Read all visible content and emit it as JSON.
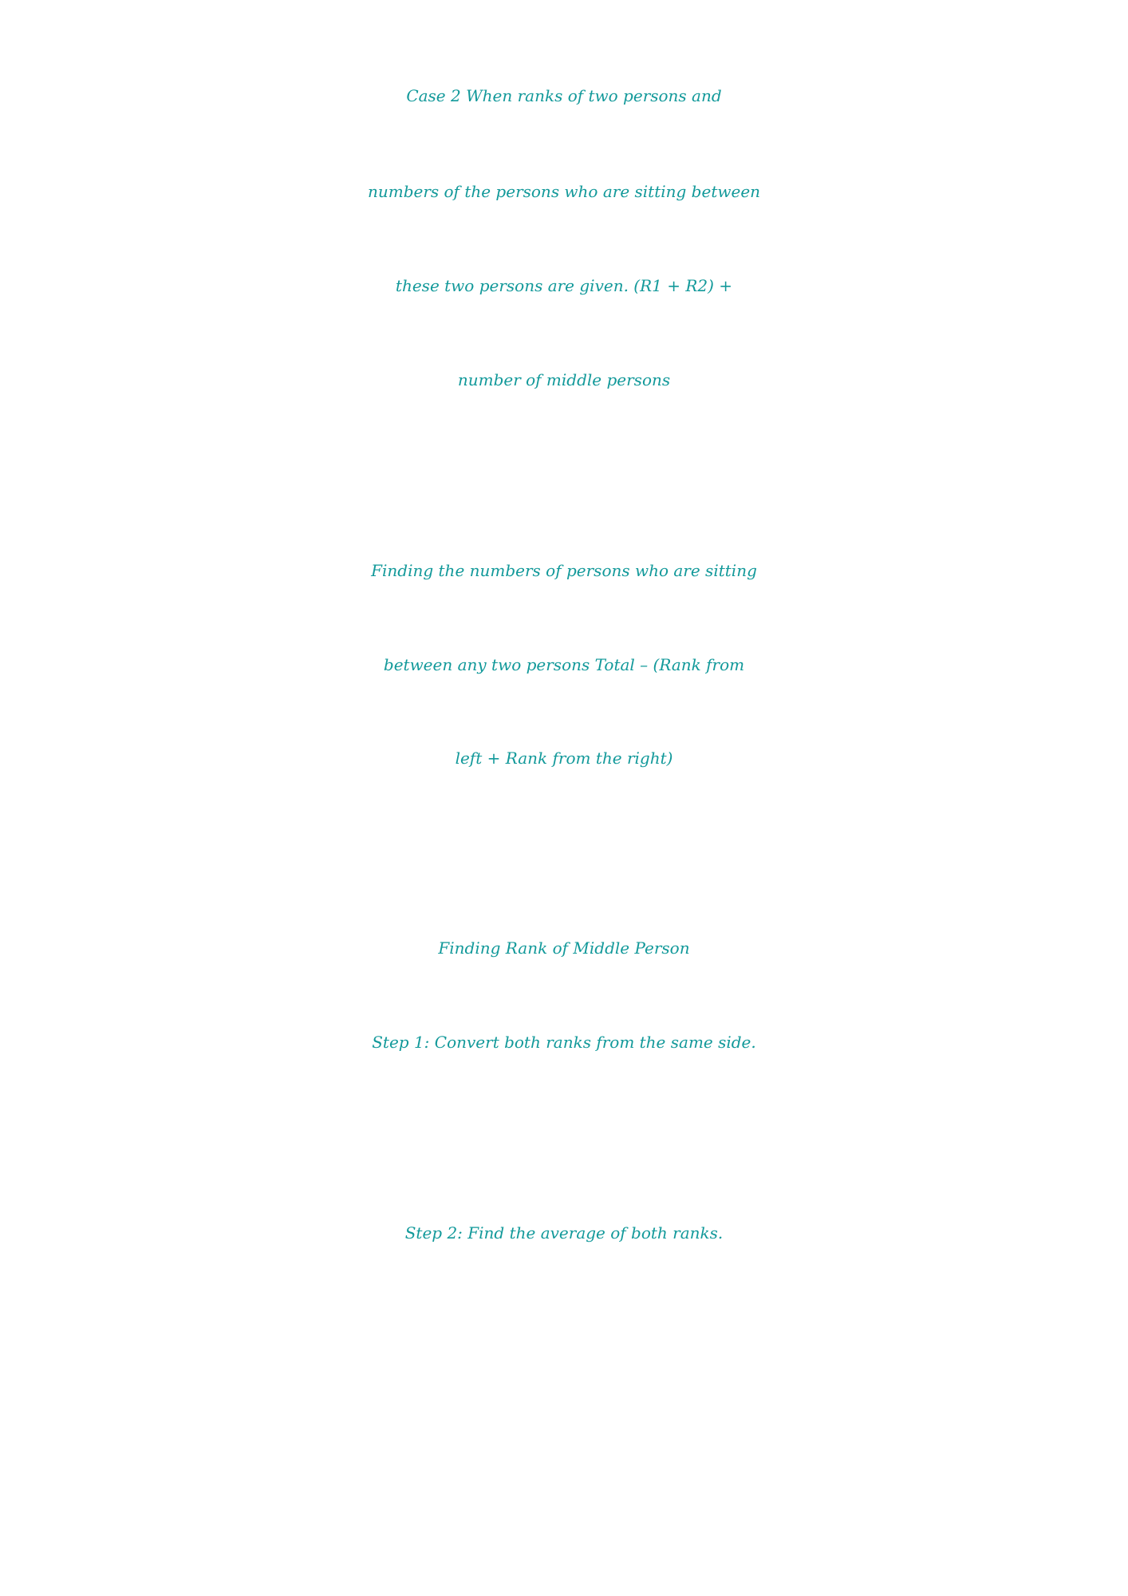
{
  "paragraphs": [
    {
      "lines": [
        "Case 2 When ranks of two persons and",
        "numbers of the persons who are sitting between",
        "these two persons are given. (R1 + R2) +",
        "number of middle persons"
      ]
    },
    {
      "lines": [
        "Finding the numbers of persons who are sitting",
        "between any two persons Total – (Rank from",
        "left + Rank from the right)"
      ]
    },
    {
      "lines": [
        "Finding Rank of Middle Person",
        "Step 1: Convert both ranks from the same side."
      ]
    },
    {
      "lines": [
        "Step 2: Find the average of both ranks."
      ]
    }
  ],
  "colors": {
    "text": "#12999a",
    "background": "#ffffff"
  }
}
